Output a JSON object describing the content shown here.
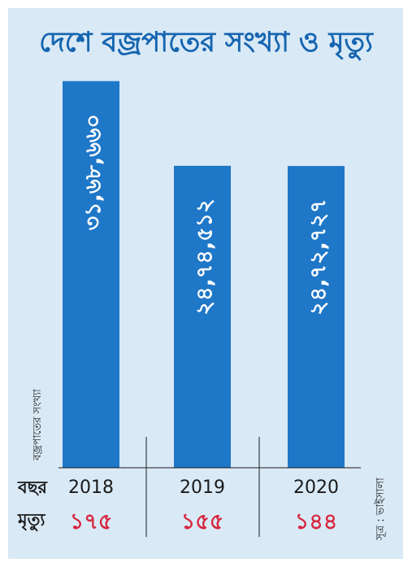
{
  "colors": {
    "background": "#d9e9f6",
    "bar": "#1f77c8",
    "title": "#1565b0",
    "deaths": "#d7263d",
    "text": "#1a1a1a",
    "bar_text": "#ffffff"
  },
  "chart_data": {
    "type": "bar",
    "title": "দেশে বজ্রপাতের সংখ্যা ও মৃত্যু",
    "ylabel": "বজ্রপাতের সংখ্যা",
    "categories": [
      "2018",
      "2019",
      "2020"
    ],
    "values": [
      3168660,
      2474512,
      2472727
    ],
    "value_labels": [
      "৩১,৬৮,৬৬০",
      "২৪,৭৪,৫১২",
      "২৪,৭২,৭২৭"
    ],
    "ylim": [
      0,
      3300000
    ],
    "row_labels": {
      "year": "বছর",
      "deaths": "মৃত্যু"
    },
    "deaths": [
      175,
      155,
      144
    ],
    "death_labels": [
      "১৭৫",
      "১৫৫",
      "১৪৪"
    ],
    "source": "সূত্র : ভাইসালা"
  }
}
